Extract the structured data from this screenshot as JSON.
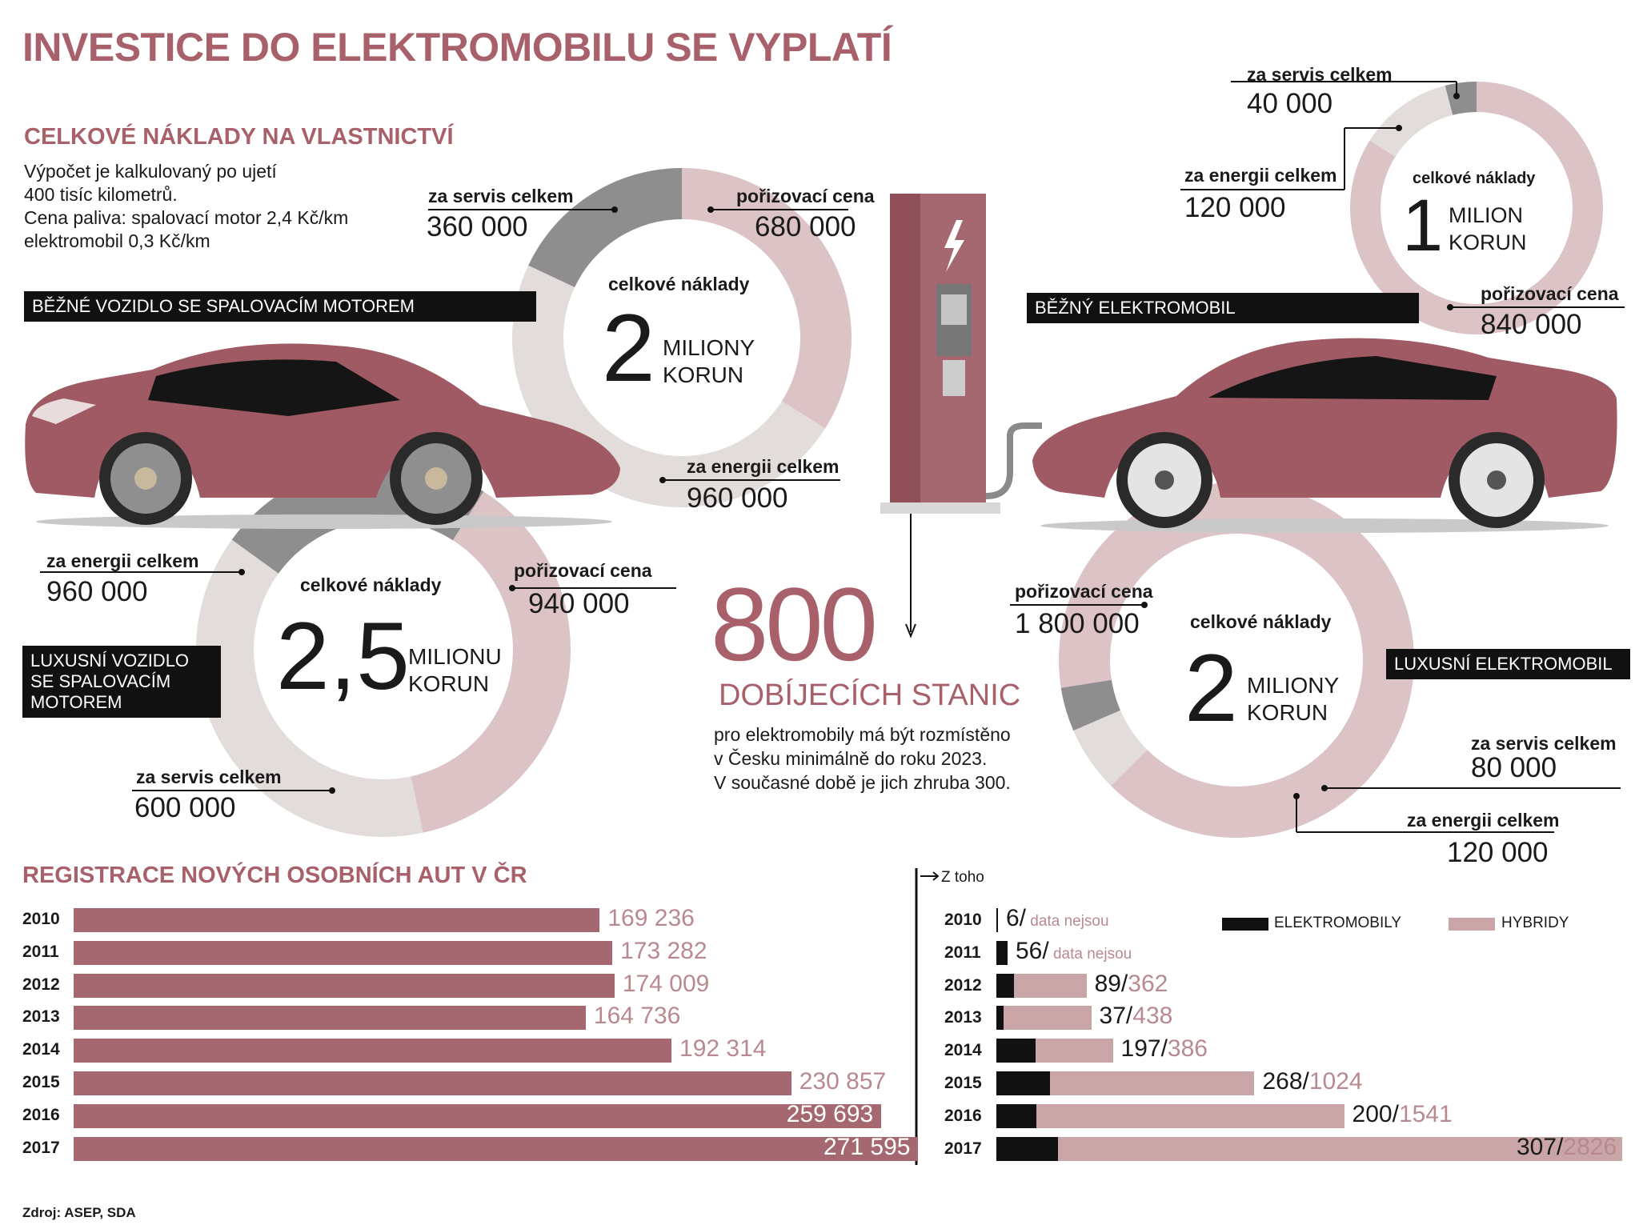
{
  "title": "INVESTICE DO ELEKTROMOBILU SE VYPLATÍ",
  "tco": {
    "title": "CELKOVÉ NÁKLADY NA VLASTNICTVÍ",
    "note": [
      "Výpočet je kalkulovaný po ujetí",
      "400 tisíc kilometrů.",
      "Cena paliva: spalovací motor 2,4 Kč/km",
      "elektromobil 0,3 Kč/km"
    ],
    "center_label": "celkové náklady",
    "vehicles": [
      {
        "id": "ice",
        "tag": "BĚŽNÉ VOZIDLO SE SPALOVACÍM MOTOREM",
        "total_big": "2",
        "total_unit": [
          "MILIONY",
          "KORUN"
        ],
        "purchase_label": "pořizovací cena",
        "purchase": "680 000",
        "energy_label": "za energii celkem",
        "energy": "960 000",
        "service_label": "za servis celkem",
        "service": "360 000"
      },
      {
        "id": "lux_ice",
        "tag": "LUXUSNÍ VOZIDLO SE SPALOVACÍM MOTOREM",
        "tag_lines": [
          "LUXUSNÍ VOZIDLO",
          "SE SPALOVACÍM",
          "MOTOREM"
        ],
        "total_big": "2,5",
        "total_unit": [
          "MILIONU",
          "KORUN"
        ],
        "purchase_label": "pořizovací cena",
        "purchase": "940 000",
        "energy_label": "za energii celkem",
        "energy": "960 000",
        "service_label": "za servis celkem",
        "service": "600 000"
      },
      {
        "id": "ev",
        "tag": "BĚŽNÝ ELEKTROMOBIL",
        "total_big": "1",
        "total_unit": [
          "MILION",
          "KORUN"
        ],
        "purchase_label": "pořizovací cena",
        "purchase": "840 000",
        "energy_label": "za energii celkem",
        "energy": "120 000",
        "service_label": "za servis celkem",
        "service": "40 000"
      },
      {
        "id": "lux_ev",
        "tag": "LUXUSNÍ ELEKTROMOBIL",
        "total_big": "2",
        "total_unit": [
          "MILIONY",
          "KORUN"
        ],
        "purchase_label": "pořizovací cena",
        "purchase": "1 800 000",
        "energy_label": "za energii celkem",
        "energy": "120 000",
        "service_label": "za servis celkem",
        "service": "80 000"
      }
    ]
  },
  "stations": {
    "number": "800",
    "title": "DOBÍJECÍCH STANIC",
    "text": [
      "pro elektromobily má být rozmístěno",
      "v Česku minimálně do roku 2023.",
      "V současné době je jich zhruba 300."
    ]
  },
  "registrations": {
    "title": "REGISTRACE NOVÝCH OSOBNÍCH AUT V ČR",
    "z_toho": "Z toho",
    "legend": {
      "electric": "ELEKTROMOBILY",
      "hybrid": "HYBRIDY"
    },
    "no_data": "data nejsou"
  },
  "source": "Zdroj: ASEP, SDA",
  "colors": {
    "accent": "#a8606a",
    "bar": "#a56870",
    "hybrid": "#c9a5a8",
    "purchase_ring": "#dcc4c6",
    "energy_ring": "#e2dcdb",
    "service_ring": "#8e8e8e"
  },
  "chart_data": [
    {
      "type": "pie",
      "title": "BĚŽNÉ VOZIDLO SE SPALOVACÍM MOTOREM",
      "categories": [
        "pořizovací cena",
        "za energii celkem",
        "za servis celkem"
      ],
      "values": [
        680000,
        960000,
        360000
      ]
    },
    {
      "type": "pie",
      "title": "LUXUSNÍ VOZIDLO SE SPALOVACÍM MOTOREM",
      "categories": [
        "pořizovací cena",
        "za energii celkem",
        "za servis celkem"
      ],
      "values": [
        940000,
        960000,
        600000
      ]
    },
    {
      "type": "pie",
      "title": "BĚŽNÝ ELEKTROMOBIL",
      "categories": [
        "pořizovací cena",
        "za energii celkem",
        "za servis celkem"
      ],
      "values": [
        840000,
        120000,
        40000
      ]
    },
    {
      "type": "pie",
      "title": "LUXUSNÍ ELEKTROMOBIL",
      "categories": [
        "pořizovací cena",
        "za energii celkem",
        "za servis celkem"
      ],
      "values": [
        1800000,
        120000,
        80000
      ]
    },
    {
      "type": "bar",
      "title": "REGISTRACE NOVÝCH OSOBNÍCH AUT V ČR",
      "categories": [
        "2010",
        "2011",
        "2012",
        "2013",
        "2014",
        "2015",
        "2016",
        "2017"
      ],
      "values": [
        169236,
        173282,
        174009,
        164736,
        192314,
        230857,
        259693,
        271595
      ],
      "labels": [
        "169 236",
        "173 282",
        "174 009",
        "164 736",
        "192 314",
        "230 857",
        "259 693",
        "271 595"
      ]
    },
    {
      "type": "bar",
      "title": "Z toho",
      "categories": [
        "2010",
        "2011",
        "2012",
        "2013",
        "2014",
        "2015",
        "2016",
        "2017"
      ],
      "series": [
        {
          "name": "ELEKTROMOBILY",
          "values": [
            6,
            56,
            89,
            37,
            197,
            268,
            200,
            307
          ]
        },
        {
          "name": "HYBRIDY",
          "values": [
            null,
            null,
            362,
            438,
            386,
            1024,
            1541,
            2826
          ]
        }
      ]
    }
  ]
}
